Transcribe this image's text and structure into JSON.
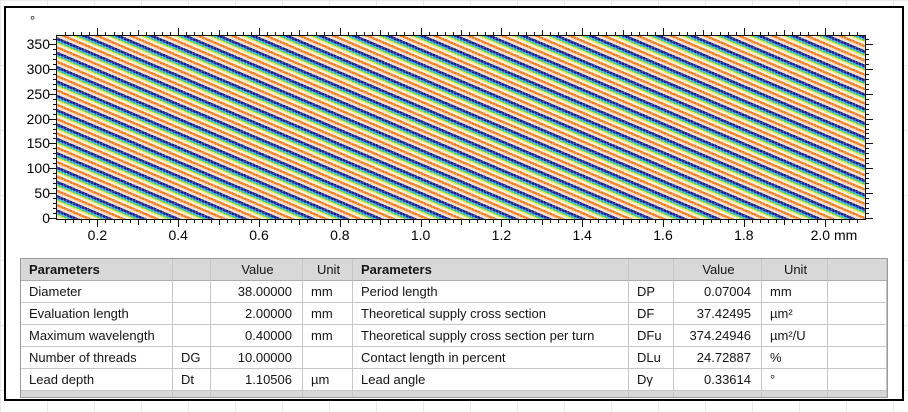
{
  "chart": {
    "y_axis": {
      "unit": "°",
      "min": 0,
      "max": 366,
      "major_step": 50,
      "minor_step": 10,
      "labels": [
        "0",
        "50",
        "100",
        "150",
        "200",
        "250",
        "300",
        "350"
      ]
    },
    "x_axis": {
      "unit": "mm",
      "min": 0.1,
      "max": 2.1,
      "major_step": 0.2,
      "medium_step": 0.1,
      "minor_step": 0.02,
      "labels": [
        "0.2",
        "0.4",
        "0.6",
        "0.8",
        "1.0",
        "1.2",
        "1.4",
        "1.6",
        "1.8",
        "2.0"
      ]
    }
  },
  "chart_data": {
    "type": "heatmap",
    "title": "",
    "xlabel": "mm",
    "ylabel": "°",
    "x_range": [
      0.1,
      2.1
    ],
    "y_range": [
      0,
      366
    ],
    "x_tick_labels": [
      "0.2",
      "0.4",
      "0.6",
      "0.8",
      "1.0",
      "1.2",
      "1.4",
      "1.6",
      "1.8",
      "2.0"
    ],
    "y_tick_labels": [
      "0",
      "50",
      "100",
      "150",
      "200",
      "250",
      "300",
      "350"
    ],
    "description": "Unrolled cylinder-surface lead texture map: periodic diagonal false-color thread stripes descending left-to-right at ~20°, period 0.07004 mm",
    "stripe_colors": [
      "#14208c",
      "#2fa8e2",
      "#52cb58",
      "#e6e44c",
      "#f6efd8",
      "#f07a20",
      "#f7dcc9"
    ]
  },
  "tables": {
    "left": {
      "headers": {
        "name": "Parameters",
        "symbol": "",
        "value": "Value",
        "unit": "Unit"
      },
      "rows": [
        {
          "name": "Diameter",
          "symbol": "",
          "value": "38.00000",
          "unit": "mm"
        },
        {
          "name": "Evaluation length",
          "symbol": "",
          "value": "2.00000",
          "unit": "mm"
        },
        {
          "name": "Maximum wavelength",
          "symbol": "",
          "value": "0.40000",
          "unit": "mm"
        },
        {
          "name": "Number of threads",
          "symbol": "DG",
          "value": "10.00000",
          "unit": ""
        },
        {
          "name": "Lead depth",
          "symbol": "Dt",
          "value": "1.10506",
          "unit": "µm"
        }
      ]
    },
    "right": {
      "headers": {
        "name": "Parameters",
        "symbol": "",
        "value": "Value",
        "unit": "Unit",
        "extra": ""
      },
      "rows": [
        {
          "name": "Period length",
          "symbol": "DP",
          "value": "0.07004",
          "unit": "mm"
        },
        {
          "name": "Theoretical supply cross section",
          "symbol": "DF",
          "value": "37.42495",
          "unit": "µm²"
        },
        {
          "name": "Theoretical supply cross section per turn",
          "symbol": "DFu",
          "value": "374.24946",
          "unit": "µm²/U"
        },
        {
          "name": "Contact length in percent",
          "symbol": "DLu",
          "value": "24.72887",
          "unit": "%"
        },
        {
          "name": "Lead angle",
          "symbol": "Dγ",
          "value": "0.33614",
          "unit": "°"
        }
      ]
    }
  }
}
